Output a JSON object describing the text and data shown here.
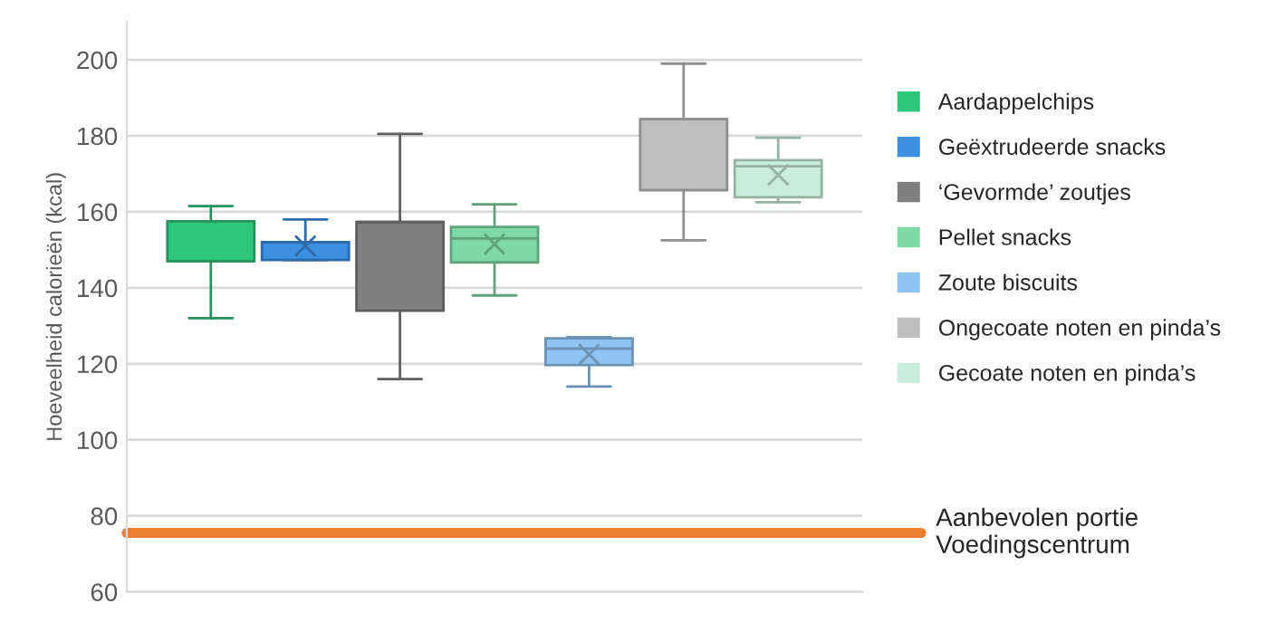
{
  "chart_data": {
    "type": "box",
    "ylabel": "Hoeveelheid calorieën (kcal)",
    "categories": [
      null
    ],
    "ylim": [
      60,
      210
    ],
    "yticks": [
      60,
      80,
      100,
      120,
      140,
      160,
      180,
      200
    ],
    "grid": "y",
    "legend": "right",
    "series": [
      {
        "name": "Aardappelchips",
        "color": "#2ec67a",
        "boxes": [
          {
            "low": 132,
            "q1": 147,
            "median": 147,
            "q3": 157.5,
            "high": 161.5
          }
        ]
      },
      {
        "name": "Geëxtrudeerde snacks",
        "color": "#3d8fe0",
        "boxes": [
          {
            "low": 147.3,
            "q1": 147.3,
            "median": 152,
            "q3": 152,
            "high": 158,
            "mean": 151
          }
        ]
      },
      {
        "name": "‘Gevormde’ zoutjes",
        "color": "#7f7f7f",
        "boxes": [
          {
            "low": 116,
            "q1": 134,
            "median": 157.3,
            "q3": 157.3,
            "high": 180.5
          }
        ]
      },
      {
        "name": "Pellet snacks",
        "color": "#7fd9a6",
        "boxes": [
          {
            "low": 138,
            "q1": 146.7,
            "median": 153,
            "q3": 156,
            "high": 162,
            "mean": 151.5
          }
        ]
      },
      {
        "name": "Zoute biscuits",
        "color": "#8fc3f2",
        "boxes": [
          {
            "low": 114,
            "q1": 119.7,
            "median": 124,
            "q3": 126.7,
            "high": 127,
            "mean": 122.5
          }
        ]
      },
      {
        "name": "Ongecoate noten en pinda’s",
        "color": "#bfbfbf",
        "boxes": [
          {
            "low": 152.5,
            "q1": 165.7,
            "median": 184.4,
            "q3": 184.4,
            "high": 199
          }
        ]
      },
      {
        "name": "Gecoate noten en pinda’s",
        "color": "#c8eedb",
        "boxes": [
          {
            "low": 162.5,
            "q1": 163.8,
            "median": 172,
            "q3": 173.6,
            "high": 179.5,
            "mean": 169.7
          }
        ]
      }
    ],
    "ref_lines": [
      {
        "axis": "y",
        "value": 75.5,
        "label": "Aanbevolen portie\nVoedingscentrum",
        "color": "#ed7d31"
      }
    ]
  }
}
